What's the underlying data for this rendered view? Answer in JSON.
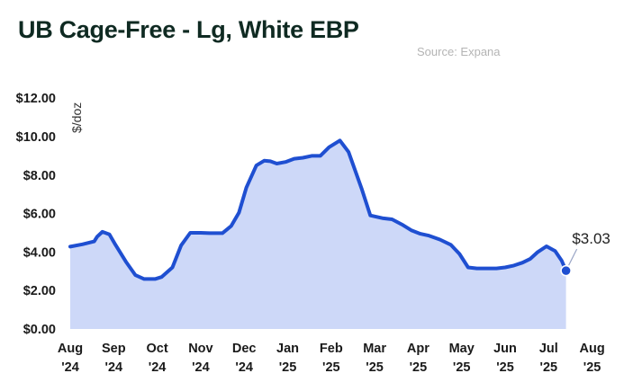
{
  "chart_data": {
    "type": "area",
    "title": "UB Cage-Free - Lg, White EBP",
    "source": "Source: Expana",
    "ylabel": "$/doz",
    "ylim": [
      0,
      12
    ],
    "yticks": [
      "$0.00",
      "$2.00",
      "$4.00",
      "$6.00",
      "$8.00",
      "$10.00",
      "$12.00"
    ],
    "xticks": [
      {
        "month": "Aug",
        "year": "'24"
      },
      {
        "month": "Sep",
        "year": "'24"
      },
      {
        "month": "Oct",
        "year": "'24"
      },
      {
        "month": "Nov",
        "year": "'24"
      },
      {
        "month": "Dec",
        "year": "'24"
      },
      {
        "month": "Jan",
        "year": "'25"
      },
      {
        "month": "Feb",
        "year": "'25"
      },
      {
        "month": "Mar",
        "year": "'25"
      },
      {
        "month": "Apr",
        "year": "'25"
      },
      {
        "month": "May",
        "year": "'25"
      },
      {
        "month": "Jun",
        "year": "'25"
      },
      {
        "month": "Jul",
        "year": "'25"
      },
      {
        "month": "Aug",
        "year": "'25"
      }
    ],
    "series": [
      {
        "values": [
          [
            0.0,
            4.28
          ],
          [
            0.28,
            4.4
          ],
          [
            0.55,
            4.55
          ],
          [
            0.62,
            4.8
          ],
          [
            0.74,
            5.05
          ],
          [
            0.9,
            4.92
          ],
          [
            1.02,
            4.45
          ],
          [
            1.28,
            3.5
          ],
          [
            1.5,
            2.8
          ],
          [
            1.7,
            2.6
          ],
          [
            1.95,
            2.6
          ],
          [
            2.1,
            2.7
          ],
          [
            2.35,
            3.2
          ],
          [
            2.55,
            4.35
          ],
          [
            2.76,
            5.0
          ],
          [
            3.0,
            5.0
          ],
          [
            3.2,
            4.98
          ],
          [
            3.5,
            4.98
          ],
          [
            3.7,
            5.35
          ],
          [
            3.88,
            6.05
          ],
          [
            4.05,
            7.35
          ],
          [
            4.28,
            8.5
          ],
          [
            4.46,
            8.75
          ],
          [
            4.6,
            8.72
          ],
          [
            4.75,
            8.6
          ],
          [
            4.95,
            8.68
          ],
          [
            5.15,
            8.85
          ],
          [
            5.35,
            8.9
          ],
          [
            5.55,
            9.0
          ],
          [
            5.75,
            9.0
          ],
          [
            5.95,
            9.45
          ],
          [
            6.2,
            9.8
          ],
          [
            6.4,
            9.2
          ],
          [
            6.7,
            7.3
          ],
          [
            6.9,
            5.9
          ],
          [
            7.2,
            5.75
          ],
          [
            7.4,
            5.7
          ],
          [
            7.65,
            5.4
          ],
          [
            7.85,
            5.12
          ],
          [
            8.05,
            4.95
          ],
          [
            8.25,
            4.85
          ],
          [
            8.5,
            4.65
          ],
          [
            8.75,
            4.38
          ],
          [
            8.95,
            3.9
          ],
          [
            9.15,
            3.2
          ],
          [
            9.35,
            3.15
          ],
          [
            9.55,
            3.15
          ],
          [
            9.8,
            3.15
          ],
          [
            10.0,
            3.2
          ],
          [
            10.2,
            3.3
          ],
          [
            10.4,
            3.45
          ],
          [
            10.58,
            3.65
          ],
          [
            10.75,
            4.0
          ],
          [
            10.95,
            4.3
          ],
          [
            11.15,
            4.05
          ],
          [
            11.3,
            3.55
          ],
          [
            11.4,
            3.03
          ]
        ],
        "end_label": "$3.03"
      }
    ],
    "grid": false,
    "colors": {
      "line": "#1f4fd1",
      "fill": "#cdd8f8",
      "text": "#1a1a1a",
      "title": "#0f2a22",
      "source": "#b4b4b4"
    }
  }
}
